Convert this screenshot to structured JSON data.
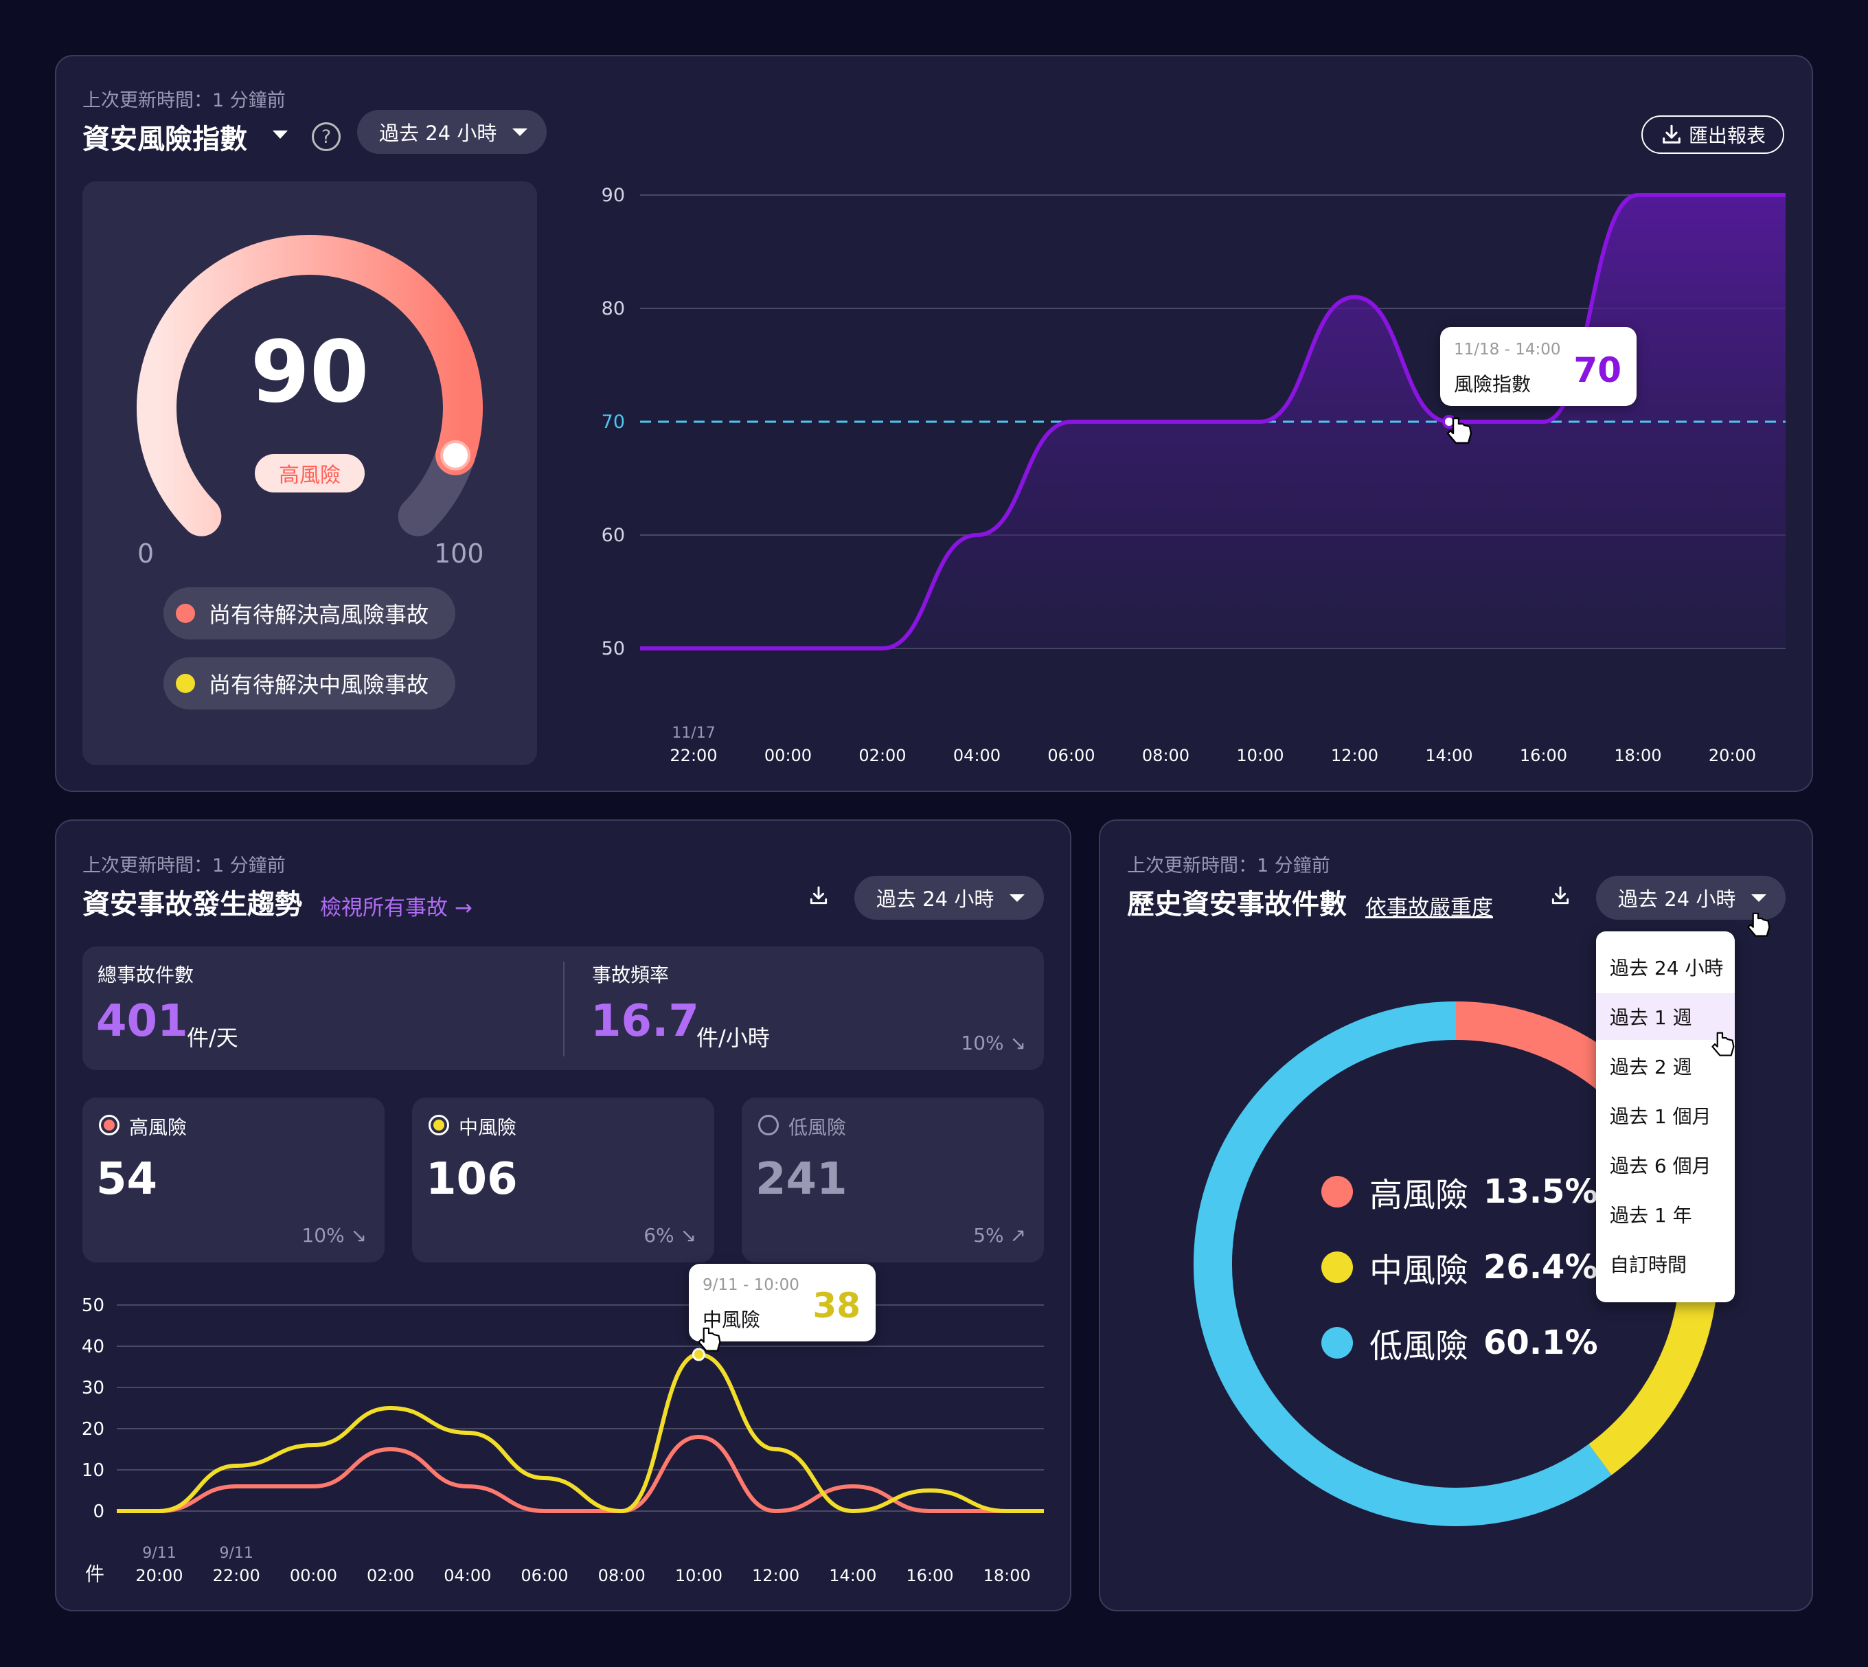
{
  "colors": {
    "purple": "#8a14e0",
    "high": "#ff7a6e",
    "medium": "#f2dd28",
    "low": "#4bc8f0",
    "threshold": "#4bc8f0",
    "accent_text": "#b06cf5"
  },
  "risk_panel": {
    "updated": "上次更新時間：1 分鐘前",
    "title": "資安風險指數",
    "range": "過去 24 小時",
    "export_label": "匯出報表",
    "gauge": {
      "value": "90",
      "value_num": 90,
      "min_label": "0",
      "max_label": "100",
      "level": "高風險"
    },
    "alerts": [
      {
        "label": "尚有待解決高風險事故",
        "color": "#ff7a6e"
      },
      {
        "label": "尚有待解決中風險事故",
        "color": "#f2dd28"
      }
    ],
    "tooltip": {
      "time": "11/18 - 14:00",
      "label": "風險指數",
      "value": "70"
    }
  },
  "trend_panel": {
    "updated": "上次更新時間：1 分鐘前",
    "title": "資安事故發生趨勢",
    "view_all": "檢視所有事故 →",
    "range": "過去 24 小時",
    "total": {
      "label": "總事故件數",
      "value": "401",
      "unit": "件/天"
    },
    "rate": {
      "label": "事故頻率",
      "value": "16.7",
      "unit": "件/小時",
      "change": "10% ↘"
    },
    "levels": [
      {
        "label": "高風險",
        "value": "54",
        "change": "10% ↘"
      },
      {
        "label": "中風險",
        "value": "106",
        "change": "6% ↘"
      },
      {
        "label": "低風險",
        "value": "241",
        "change": "5% ↗"
      }
    ],
    "y_unit": "件",
    "tooltip": {
      "time": "9/11 - 10:00",
      "label": "中風險",
      "value": "38"
    }
  },
  "history_panel": {
    "updated": "上次更新時間：1 分鐘前",
    "title": "歷史資安事故件數",
    "sort": "依事故嚴重度",
    "range": "過去 24 小時",
    "menu": [
      "過去 24 小時",
      "過去 1 週",
      "過去 2 週",
      "過去 1 個月",
      "過去 6 個月",
      "過去 1 年",
      "自訂時間"
    ],
    "legend": [
      {
        "label": "高風險",
        "pct": "13.5%"
      },
      {
        "label": "中風險",
        "pct": "26.4%"
      },
      {
        "label": "低風險",
        "pct": "60.1%"
      }
    ]
  },
  "chart_data": [
    {
      "type": "area",
      "title": "資安風險指數",
      "x_top_labels": [
        "11/17",
        "",
        "",
        "",
        "",
        "",
        "",
        "",
        "",
        "",
        "",
        ""
      ],
      "x": [
        "22:00",
        "00:00",
        "02:00",
        "04:00",
        "06:00",
        "08:00",
        "10:00",
        "12:00",
        "14:00",
        "16:00",
        "18:00",
        "20:00"
      ],
      "series": [
        {
          "values": [
            50,
            50,
            50,
            60,
            70,
            70,
            70,
            81,
            70,
            70,
            90,
            90
          ]
        }
      ],
      "threshold": 70,
      "y_ticks": [
        "90",
        "80",
        "70",
        "60",
        "50"
      ],
      "ylim": [
        50,
        90
      ]
    },
    {
      "type": "line",
      "title": "資安事故發生趨勢",
      "x_top_labels": [
        "9/11",
        "9/11",
        "",
        "",
        "",
        "",
        "",
        "",
        "",
        "",
        "",
        ""
      ],
      "x": [
        "20:00",
        "22:00",
        "00:00",
        "02:00",
        "04:00",
        "06:00",
        "08:00",
        "10:00",
        "12:00",
        "14:00",
        "16:00",
        "18:00"
      ],
      "series": [
        {
          "name": "高風險",
          "values": [
            0,
            6,
            6,
            15,
            6,
            0,
            0,
            18,
            0,
            6,
            0,
            0
          ]
        },
        {
          "name": "中風險",
          "values": [
            0,
            11,
            16,
            25,
            19,
            8,
            0,
            38,
            15,
            0,
            5,
            0
          ]
        }
      ],
      "y_ticks": [
        "50",
        "40",
        "30",
        "20",
        "10",
        "0"
      ],
      "ylim": [
        0,
        50
      ]
    },
    {
      "type": "pie",
      "title": "歷史資安事故件數",
      "categories": [
        "高風險",
        "中風險",
        "低風險"
      ],
      "values": [
        13.5,
        26.4,
        60.1
      ]
    }
  ]
}
